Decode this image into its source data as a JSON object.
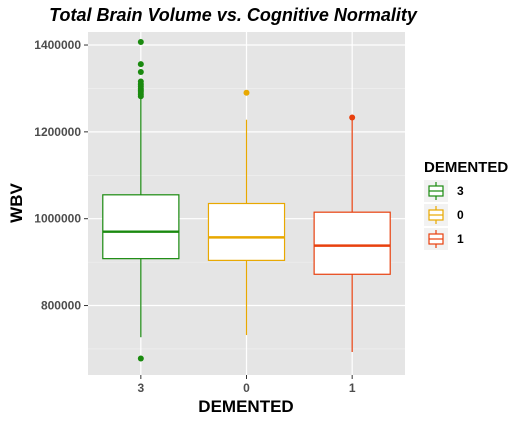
{
  "chart_data": {
    "type": "boxplot",
    "title": "Total Brain Volume vs. Cognitive Normality",
    "xlabel": "DEMENTED",
    "ylabel": "WBV",
    "categories": [
      "3",
      "0",
      "1"
    ],
    "ylim": [
      640000,
      1430000
    ],
    "yticks": [
      800000,
      1000000,
      1200000,
      1400000
    ],
    "ytick_labels": [
      "800000",
      "1000000",
      "1200000",
      "1400000"
    ],
    "series": [
      {
        "category": "3",
        "color": "#1a8a0f",
        "whisker_low": 727000,
        "q1": 908000,
        "median": 970000,
        "q3": 1055000,
        "whisker_high": 1278000,
        "outliers": [
          678000,
          1282000,
          1287000,
          1292000,
          1296000,
          1300000,
          1305000,
          1310000,
          1316000,
          1338000,
          1356000,
          1407000
        ]
      },
      {
        "category": "0",
        "color": "#e8a800",
        "whisker_low": 732000,
        "q1": 904000,
        "median": 957000,
        "q3": 1035000,
        "whisker_high": 1228000,
        "outliers": [
          1290000
        ]
      },
      {
        "category": "1",
        "color": "#e8400e",
        "whisker_low": 693000,
        "q1": 872000,
        "median": 938000,
        "q3": 1015000,
        "whisker_high": 1232000,
        "outliers": [
          1233000
        ]
      }
    ],
    "legend": {
      "title": "DEMENTED",
      "placement": "right",
      "entries": [
        {
          "label": "3",
          "color": "#1a8a0f"
        },
        {
          "label": "0",
          "color": "#e8a800"
        },
        {
          "label": "1",
          "color": "#e8400e"
        }
      ]
    },
    "grid": true
  }
}
